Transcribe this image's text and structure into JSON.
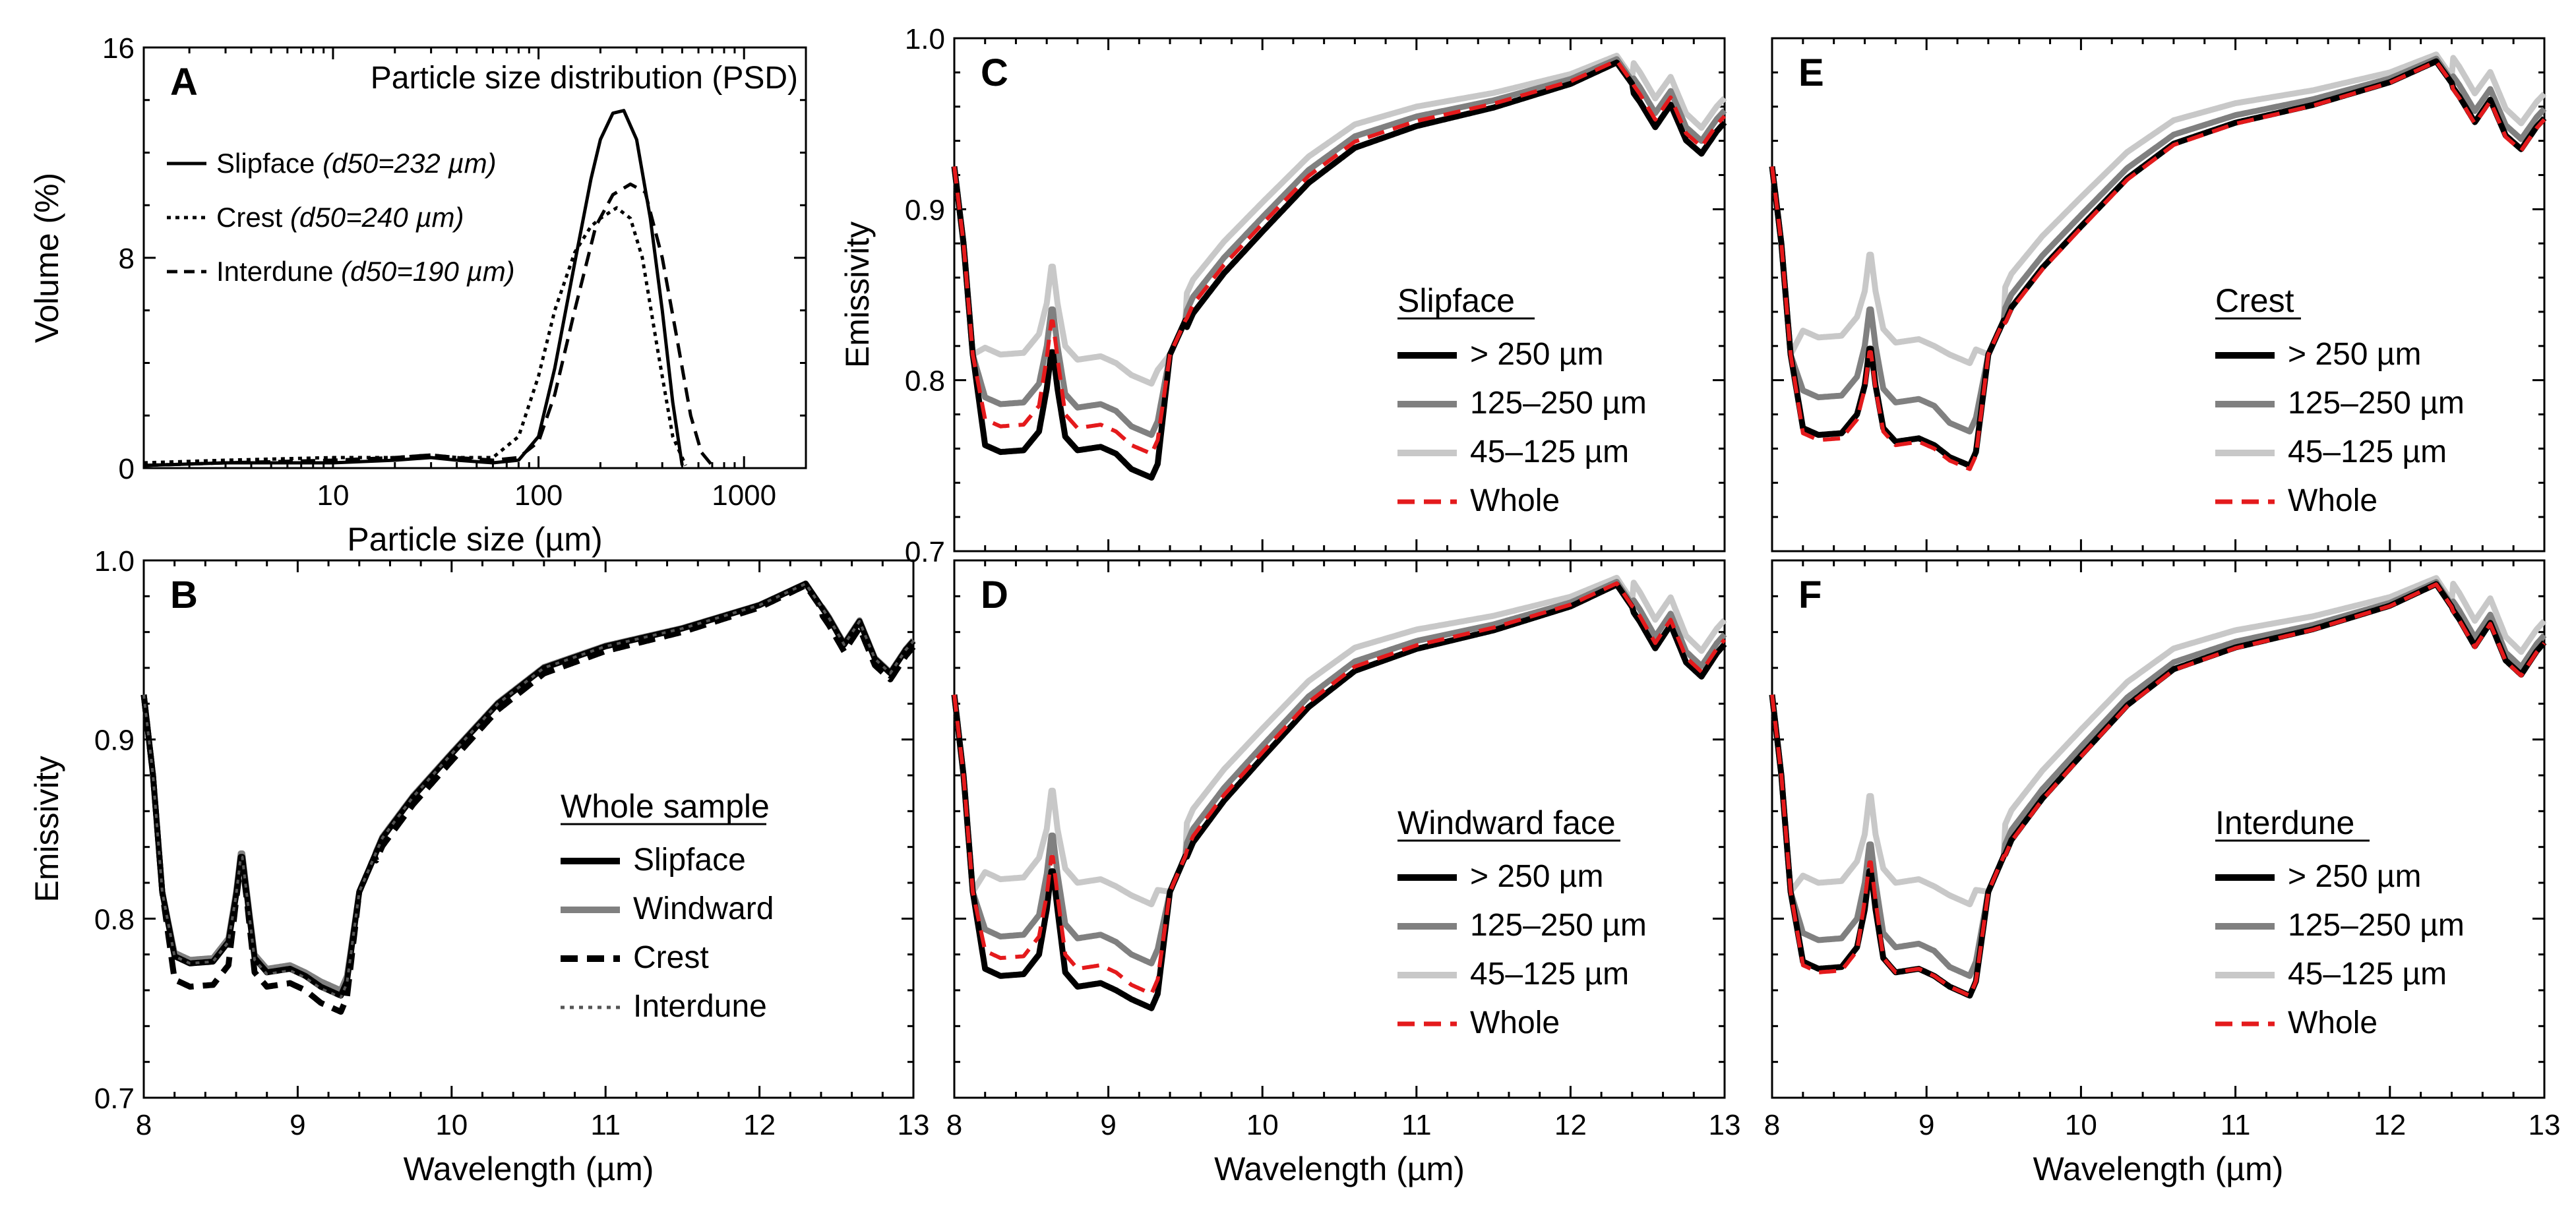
{
  "figure": {
    "colors": {
      "black": "#000000",
      "dark_gray": "#808080",
      "light_gray": "#c8c8c8",
      "red": "#e41a1c"
    }
  },
  "chart_data": [
    {
      "id": "A",
      "type": "line",
      "panel_letter": "A",
      "title": "Particle size distribution (PSD)",
      "xlabel": "Particle size (µm)",
      "ylabel": "Volume (%)",
      "xscale": "log",
      "xlim": [
        1.2,
        2000
      ],
      "ylim": [
        0,
        16
      ],
      "xticks": [
        10,
        100,
        1000
      ],
      "xtick_labels": [
        "10",
        "100",
        "1000"
      ],
      "yticks": [
        0,
        8,
        16
      ],
      "ytick_labels": [
        "0",
        "8",
        "16"
      ],
      "legend": [
        {
          "name": "Slipface",
          "d50_label": "(d50=232 µm)",
          "style": "solid"
        },
        {
          "name": "Crest",
          "d50_label": "(d50=240 µm)",
          "style": "dotted"
        },
        {
          "name": "Interdune",
          "d50_label": "(d50=190 µm)",
          "style": "dashed"
        }
      ],
      "series": [
        {
          "name": "Slipface",
          "style": "solid",
          "x": [
            1.2,
            3,
            10,
            20,
            30,
            40,
            60,
            80,
            100,
            120,
            150,
            180,
            200,
            230,
            260,
            300,
            350,
            400,
            450,
            500
          ],
          "y": [
            0.1,
            0.2,
            0.2,
            0.3,
            0.4,
            0.3,
            0.2,
            0.3,
            1.2,
            3.8,
            7.8,
            11,
            12.5,
            13.5,
            13.6,
            12.5,
            9.5,
            6,
            2.5,
            0.1
          ]
        },
        {
          "name": "Crest",
          "style": "dotted",
          "x": [
            1.2,
            3,
            10,
            20,
            30,
            40,
            60,
            80,
            100,
            120,
            150,
            180,
            200,
            240,
            280,
            320,
            380,
            450,
            520
          ],
          "y": [
            0.2,
            0.3,
            0.4,
            0.4,
            0.5,
            0.4,
            0.4,
            1.2,
            3.5,
            6,
            8.2,
            9.2,
            9.5,
            9.9,
            9.5,
            8,
            4.5,
            1.2,
            0.1
          ]
        },
        {
          "name": "Interdune",
          "style": "dashed",
          "x": [
            1.2,
            3,
            10,
            20,
            30,
            40,
            60,
            80,
            100,
            120,
            150,
            190,
            230,
            280,
            330,
            400,
            470,
            550,
            620,
            700
          ],
          "y": [
            0.1,
            0.2,
            0.3,
            0.4,
            0.5,
            0.4,
            0.3,
            0.4,
            1,
            2.8,
            6,
            9.2,
            10.4,
            10.8,
            10.5,
            8,
            5,
            2,
            0.6,
            0.1
          ]
        }
      ]
    },
    {
      "id": "B",
      "type": "line",
      "panel_letter": "B",
      "xlabel": "Wavelength (µm)",
      "ylabel": "Emissivity",
      "xlim": [
        8,
        13
      ],
      "ylim": [
        0.7,
        1.0
      ],
      "xticks": [
        8,
        9,
        10,
        11,
        12,
        13
      ],
      "xtick_labels": [
        "8",
        "9",
        "10",
        "11",
        "12",
        "13"
      ],
      "yticks": [
        0.7,
        0.8,
        0.9,
        1.0
      ],
      "ytick_labels": [
        "0.7",
        "0.8",
        "0.9",
        "1.0"
      ],
      "legend_title": "Whole sample",
      "legend": [
        "Slipface",
        "Windward",
        "Crest",
        "Interdune"
      ],
      "series": [
        {
          "name": "Slipface",
          "color": "#000000",
          "style": "solid",
          "trough": 0.775,
          "peak": 0.838,
          "shoulder": 0.768,
          "dip": 0.757
        },
        {
          "name": "Windward",
          "color": "#808080",
          "style": "solid",
          "trough": 0.777,
          "peak": 0.84,
          "shoulder": 0.77,
          "dip": 0.76
        },
        {
          "name": "Crest",
          "color": "#000000",
          "style": "dashed",
          "trough": 0.762,
          "peak": 0.835,
          "shoulder": 0.76,
          "dip": 0.748
        },
        {
          "name": "Interdune",
          "color": "#555555",
          "style": "dotted",
          "trough": 0.775,
          "peak": 0.838,
          "shoulder": 0.767,
          "dip": 0.756
        }
      ]
    },
    {
      "id": "C",
      "type": "line",
      "panel_letter": "C",
      "xlabel": "",
      "ylabel": "Emissivity",
      "xlim": [
        8,
        13
      ],
      "ylim": [
        0.7,
        1.0
      ],
      "yticks": [
        0.7,
        0.8,
        0.9,
        1.0
      ],
      "ytick_labels": [
        "0.7",
        "0.8",
        "0.9",
        "1.0"
      ],
      "legend_title": "Slipface",
      "legend": [
        "> 250 µm",
        "125–250 µm",
        "45–125 µm",
        "Whole"
      ],
      "series": [
        {
          "name": "> 250 µm",
          "color": "#000000",
          "style": "solid",
          "trough": 0.758,
          "peak": 0.82,
          "shoulder": 0.757,
          "dip": 0.743
        },
        {
          "name": "125–250 µm",
          "color": "#808080",
          "style": "solid",
          "trough": 0.786,
          "peak": 0.845,
          "shoulder": 0.782,
          "dip": 0.768
        },
        {
          "name": "45–125 µm",
          "color": "#c8c8c8",
          "style": "solid",
          "trough": 0.815,
          "peak": 0.87,
          "shoulder": 0.81,
          "dip": 0.798
        },
        {
          "name": "Whole",
          "color": "#e41a1c",
          "style": "dashed",
          "trough": 0.773,
          "peak": 0.838,
          "shoulder": 0.77,
          "dip": 0.757
        }
      ]
    },
    {
      "id": "D",
      "type": "line",
      "panel_letter": "D",
      "xlabel": "Wavelength (µm)",
      "ylabel": "",
      "xlim": [
        8,
        13
      ],
      "ylim": [
        0.7,
        1.0
      ],
      "xticks": [
        8,
        9,
        10,
        11,
        12,
        13
      ],
      "xtick_labels": [
        "8",
        "9",
        "10",
        "11",
        "12",
        "13"
      ],
      "legend_title": "Windward face",
      "legend": [
        "> 250 µm",
        "125–250 µm",
        "45–125 µm",
        "Whole"
      ],
      "series": [
        {
          "name": "> 250 µm",
          "color": "#000000",
          "style": "solid",
          "trough": 0.768,
          "peak": 0.83,
          "shoulder": 0.76,
          "dip": 0.75
        },
        {
          "name": "125–250 µm",
          "color": "#808080",
          "style": "solid",
          "trough": 0.79,
          "peak": 0.85,
          "shoulder": 0.787,
          "dip": 0.775
        },
        {
          "name": "45–125 µm",
          "color": "#c8c8c8",
          "style": "solid",
          "trough": 0.822,
          "peak": 0.875,
          "shoulder": 0.818,
          "dip": 0.808
        },
        {
          "name": "Whole",
          "color": "#e41a1c",
          "style": "dashed",
          "trough": 0.778,
          "peak": 0.838,
          "shoulder": 0.77,
          "dip": 0.758
        }
      ]
    },
    {
      "id": "E",
      "type": "line",
      "panel_letter": "E",
      "xlabel": "",
      "ylabel": "",
      "xlim": [
        8,
        13
      ],
      "ylim": [
        0.7,
        1.0
      ],
      "legend_title": "Crest",
      "legend": [
        "> 250 µm",
        "125–250 µm",
        "45–125 µm",
        "Whole"
      ],
      "series": [
        {
          "name": "> 250 µm",
          "color": "#000000",
          "style": "solid",
          "trough": 0.768,
          "peak": 0.822,
          "shoulder": 0.762,
          "dip": 0.75
        },
        {
          "name": "125–250 µm",
          "color": "#808080",
          "style": "solid",
          "trough": 0.79,
          "peak": 0.845,
          "shoulder": 0.785,
          "dip": 0.77
        },
        {
          "name": "45–125 µm",
          "color": "#c8c8c8",
          "style": "solid",
          "trough": 0.825,
          "peak": 0.877,
          "shoulder": 0.82,
          "dip": 0.81
        },
        {
          "name": "Whole",
          "color": "#e41a1c",
          "style": "dashed",
          "trough": 0.765,
          "peak": 0.82,
          "shoulder": 0.76,
          "dip": 0.748
        }
      ]
    },
    {
      "id": "F",
      "type": "line",
      "panel_letter": "F",
      "xlabel": "Wavelength (µm)",
      "ylabel": "",
      "xlim": [
        8,
        13
      ],
      "ylim": [
        0.7,
        1.0
      ],
      "xticks": [
        8,
        9,
        10,
        11,
        12,
        13
      ],
      "xtick_labels": [
        "8",
        "9",
        "10",
        "11",
        "12",
        "13"
      ],
      "legend_title": "Interdune",
      "legend": [
        "> 250 µm",
        "125–250 µm",
        "45–125 µm",
        "Whole"
      ],
      "series": [
        {
          "name": "> 250 µm",
          "color": "#000000",
          "style": "solid",
          "trough": 0.772,
          "peak": 0.83,
          "shoulder": 0.768,
          "dip": 0.757
        },
        {
          "name": "125–250 µm",
          "color": "#808080",
          "style": "solid",
          "trough": 0.788,
          "peak": 0.845,
          "shoulder": 0.782,
          "dip": 0.768
        },
        {
          "name": "45–125 µm",
          "color": "#c8c8c8",
          "style": "solid",
          "trough": 0.82,
          "peak": 0.872,
          "shoulder": 0.818,
          "dip": 0.808
        },
        {
          "name": "Whole",
          "color": "#e41a1c",
          "style": "dashed",
          "trough": 0.77,
          "peak": 0.835,
          "shoulder": 0.768,
          "dip": 0.757
        }
      ]
    }
  ]
}
